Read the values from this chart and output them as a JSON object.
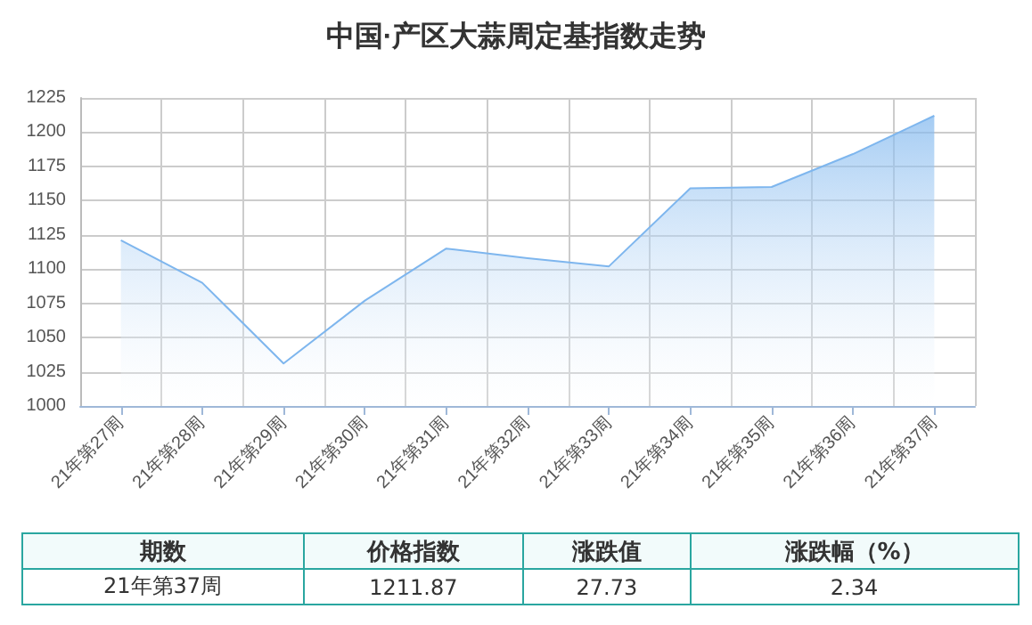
{
  "chart_data": {
    "type": "area",
    "title": "中国·产区大蒜周定基指数走势",
    "categories": [
      "21年第27周",
      "21年第28周",
      "21年第29周",
      "21年第30周",
      "21年第31周",
      "21年第32周",
      "21年第33周",
      "21年第34周",
      "21年第35周",
      "21年第36周",
      "21年第37周"
    ],
    "series": [
      {
        "color": "#7eb6ee",
        "values": [
          1121,
          1090,
          1031,
          1077,
          1115,
          1108,
          1102,
          1159,
          1160,
          1184,
          1212
        ]
      }
    ],
    "ylim": [
      1000,
      1225
    ],
    "yticks": [
      1000,
      1025,
      1050,
      1075,
      1100,
      1125,
      1150,
      1175,
      1200,
      1225
    ],
    "grid": true,
    "marker": "none",
    "line_style": "solid",
    "annotations": [
      "期数",
      "价格指数",
      "涨跌值",
      "涨跌幅（%）",
      "21年第37周",
      "1211.87",
      "27.73",
      "2.34"
    ]
  }
}
